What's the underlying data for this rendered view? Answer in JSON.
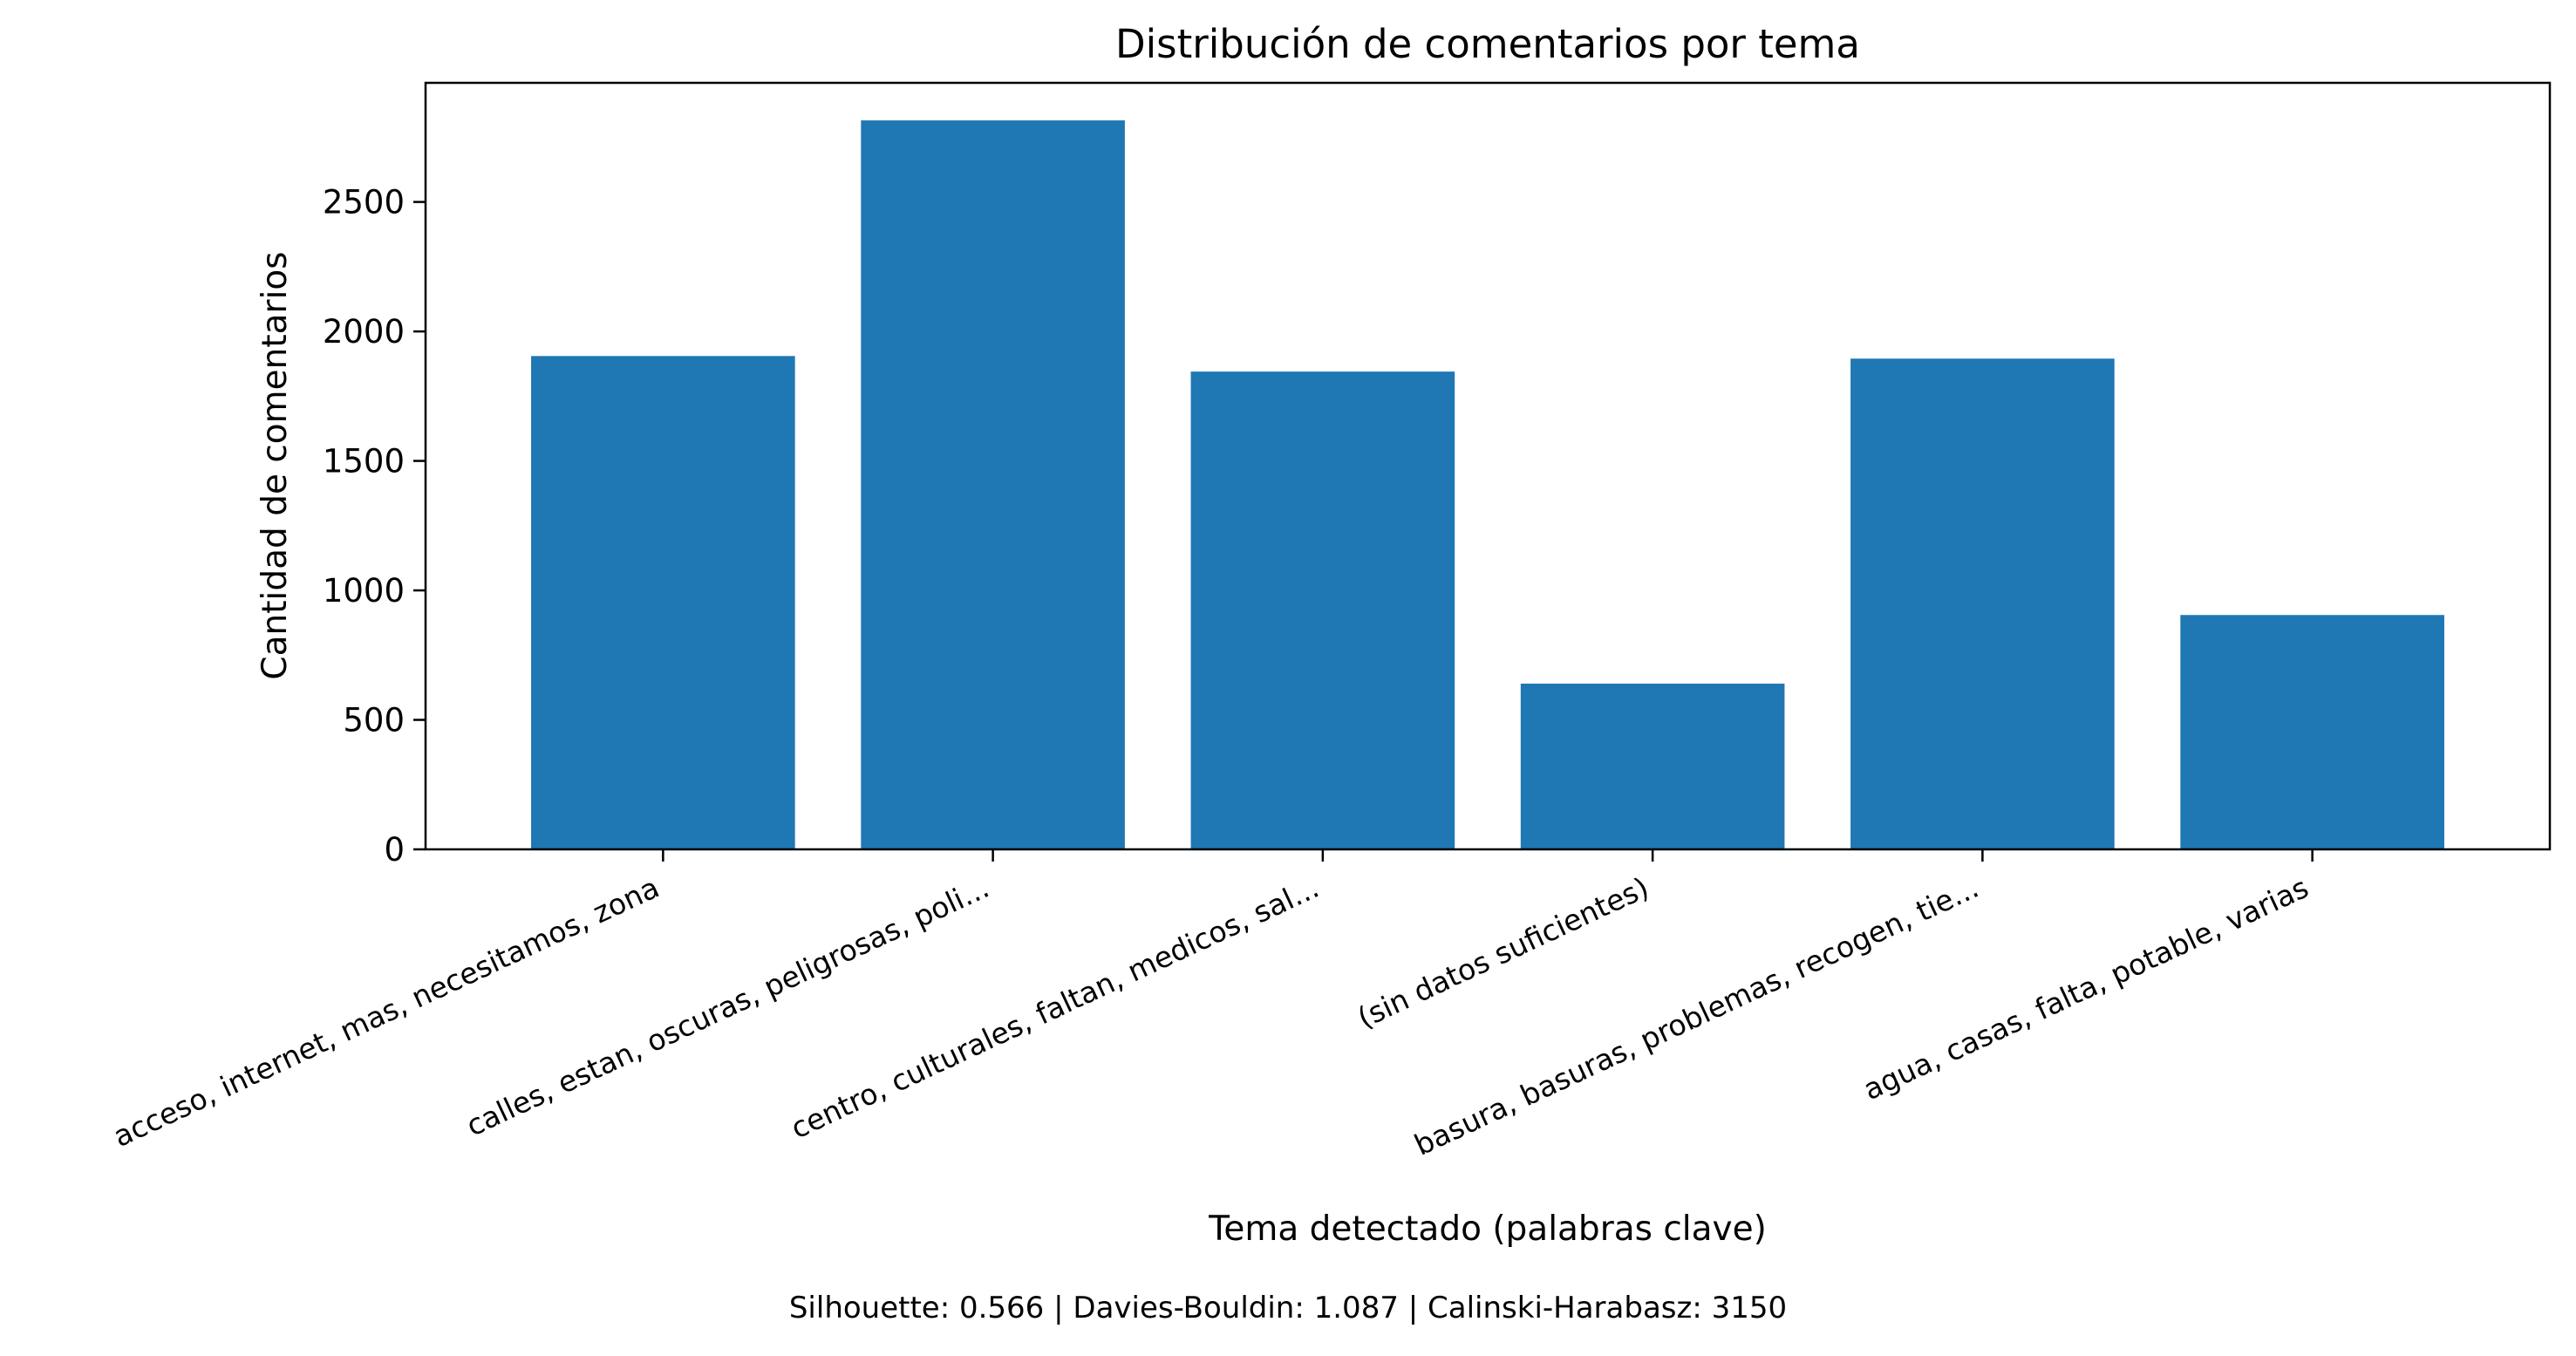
{
  "chart_data": {
    "type": "bar",
    "title": "Distribución de comentarios por tema",
    "xlabel": "Tema detectado (palabras clave)",
    "ylabel": "Cantidad de comentarios",
    "footer": "Silhouette: 0.566 | Davies-Bouldin: 1.087 | Calinski-Harabasz: 3150",
    "categories": [
      "acceso, internet, mas, necesitamos, zona",
      "calles, estan, oscuras, peligrosas, poli...",
      "centro, culturales, faltan, medicos, sal...",
      "(sin datos suficientes)",
      "basura, basuras, problemas, recogen, tie...",
      "agua, casas, falta, potable, varias"
    ],
    "values": [
      1905,
      2815,
      1845,
      640,
      1895,
      905
    ],
    "ylim": [
      0,
      2960
    ],
    "yticks": [
      0,
      500,
      1000,
      1500,
      2000,
      2500
    ],
    "grid": false,
    "legend": "none",
    "bar_color": "#1f77b4"
  }
}
